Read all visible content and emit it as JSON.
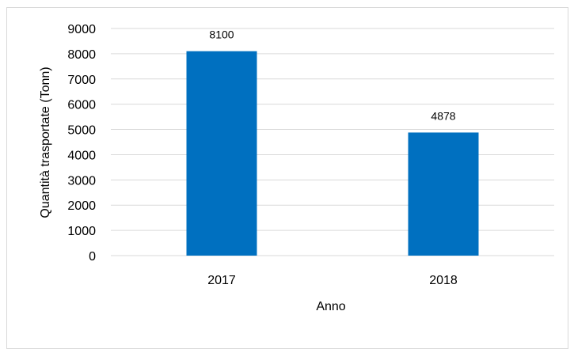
{
  "chart_data": {
    "type": "bar",
    "title": "",
    "xlabel": "Anno",
    "ylabel": "Quantità trasportate (Tonn)",
    "categories": [
      "2017",
      "2018"
    ],
    "values": [
      8100,
      4878
    ],
    "data_labels": [
      "8100",
      "4878"
    ],
    "ylim": [
      0,
      9000
    ],
    "yticks": [
      0,
      1000,
      2000,
      3000,
      4000,
      5000,
      6000,
      7000,
      8000,
      9000
    ],
    "ytick_labels": [
      "0",
      "1000",
      "2000",
      "3000",
      "4000",
      "5000",
      "6000",
      "7000",
      "8000",
      "9000"
    ],
    "grid": "horizontal",
    "legend": "none",
    "colors": {
      "bar": "#0070c0",
      "grid": "#d9d9d9"
    }
  }
}
